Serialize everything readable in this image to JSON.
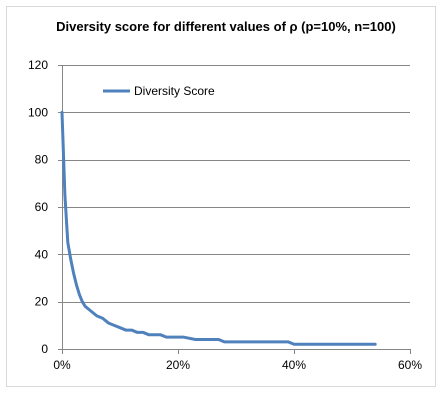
{
  "chart_data": {
    "type": "line",
    "title": "Diversity score for different values of  ρ (p=10%, n=100)",
    "xlabel": "",
    "ylabel": "",
    "xlim": [
      0,
      0.6
    ],
    "ylim": [
      0,
      120
    ],
    "x_ticks": [
      0,
      0.2,
      0.4,
      0.6
    ],
    "x_tick_labels": [
      "0%",
      "20%",
      "40%",
      "60%"
    ],
    "y_ticks": [
      0,
      20,
      40,
      60,
      80,
      100,
      120
    ],
    "y_tick_labels": [
      "0",
      "20",
      "40",
      "60",
      "80",
      "100",
      "120"
    ],
    "grid": "horizontal",
    "legend_position": "top-left",
    "series": [
      {
        "name": "Diversity Score",
        "color": "#4f81bd",
        "x": [
          0,
          0.005,
          0.01,
          0.015,
          0.02,
          0.025,
          0.03,
          0.035,
          0.04,
          0.05,
          0.06,
          0.07,
          0.08,
          0.09,
          0.1,
          0.11,
          0.12,
          0.13,
          0.14,
          0.15,
          0.17,
          0.18,
          0.2,
          0.21,
          0.23,
          0.25,
          0.27,
          0.28,
          0.3,
          0.35,
          0.39,
          0.4,
          0.45,
          0.5,
          0.54
        ],
        "y": [
          100,
          65,
          45,
          38,
          32,
          27,
          23,
          20,
          18,
          16,
          14,
          13,
          11,
          10,
          9,
          8,
          8,
          7,
          7,
          6,
          6,
          5,
          5,
          5,
          4,
          4,
          4,
          3,
          3,
          3,
          3,
          2,
          2,
          2,
          2
        ]
      }
    ]
  }
}
